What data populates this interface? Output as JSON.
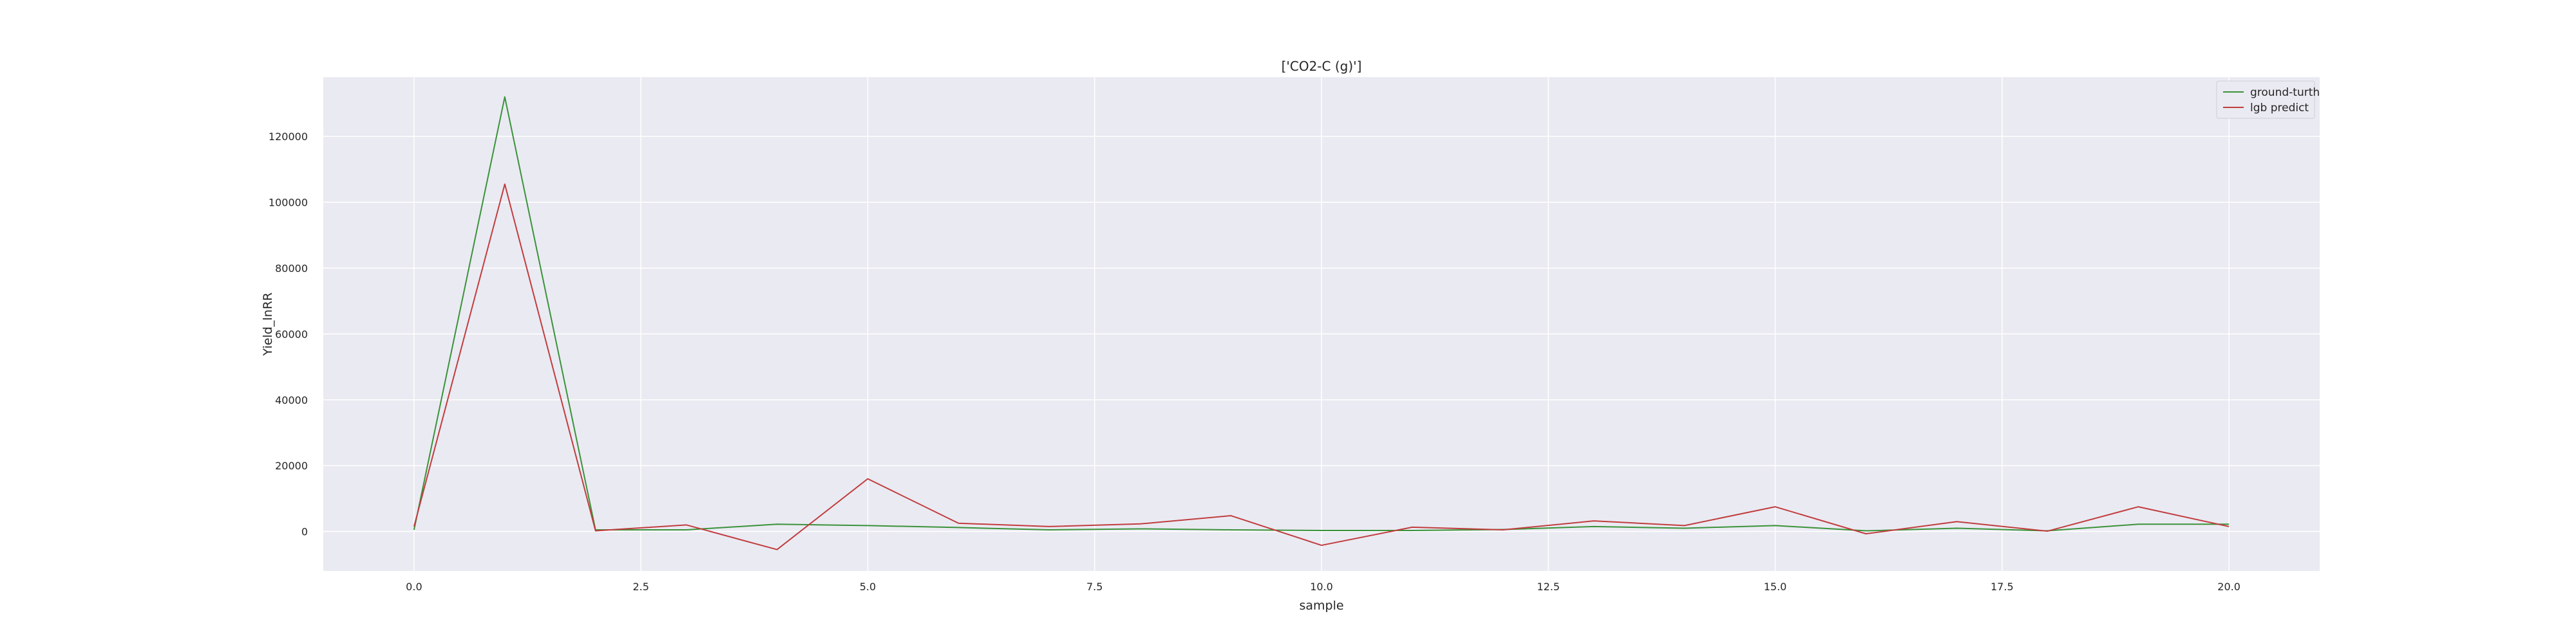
{
  "chart_data": {
    "type": "line",
    "title": "['CO2-C (g)']",
    "xlabel": "sample",
    "ylabel": "Yield_lnRR",
    "xlim": [
      -1,
      21
    ],
    "ylim": [
      -12000,
      138000
    ],
    "x_ticks": [
      0.0,
      2.5,
      5.0,
      7.5,
      10.0,
      12.5,
      15.0,
      17.5,
      20.0
    ],
    "x_tick_labels": [
      "0.0",
      "2.5",
      "5.0",
      "7.5",
      "10.0",
      "12.5",
      "15.0",
      "17.5",
      "20.0"
    ],
    "y_ticks": [
      0,
      20000,
      40000,
      60000,
      80000,
      100000,
      120000
    ],
    "y_tick_labels": [
      "0",
      "20000",
      "40000",
      "60000",
      "80000",
      "100000",
      "120000"
    ],
    "grid": true,
    "legend_position": "top-right",
    "x": [
      0,
      1,
      2,
      3,
      4,
      5,
      6,
      7,
      8,
      9,
      10,
      11,
      12,
      13,
      14,
      15,
      16,
      17,
      18,
      19,
      20
    ],
    "series": [
      {
        "name": "ground-turth",
        "color": "#3a923a",
        "values": [
          500,
          132000,
          500,
          500,
          2200,
          1800,
          1200,
          500,
          800,
          500,
          300,
          300,
          600,
          1500,
          1000,
          1800,
          200,
          1000,
          200,
          2200,
          2200
        ]
      },
      {
        "name": "lgb predict",
        "color": "#c03d3e",
        "values": [
          1500,
          105500,
          200,
          2000,
          -5500,
          16000,
          2500,
          1500,
          2300,
          4800,
          -4200,
          1300,
          500,
          3200,
          1800,
          7500,
          -700,
          3000,
          100,
          7500,
          1500
        ]
      }
    ]
  }
}
